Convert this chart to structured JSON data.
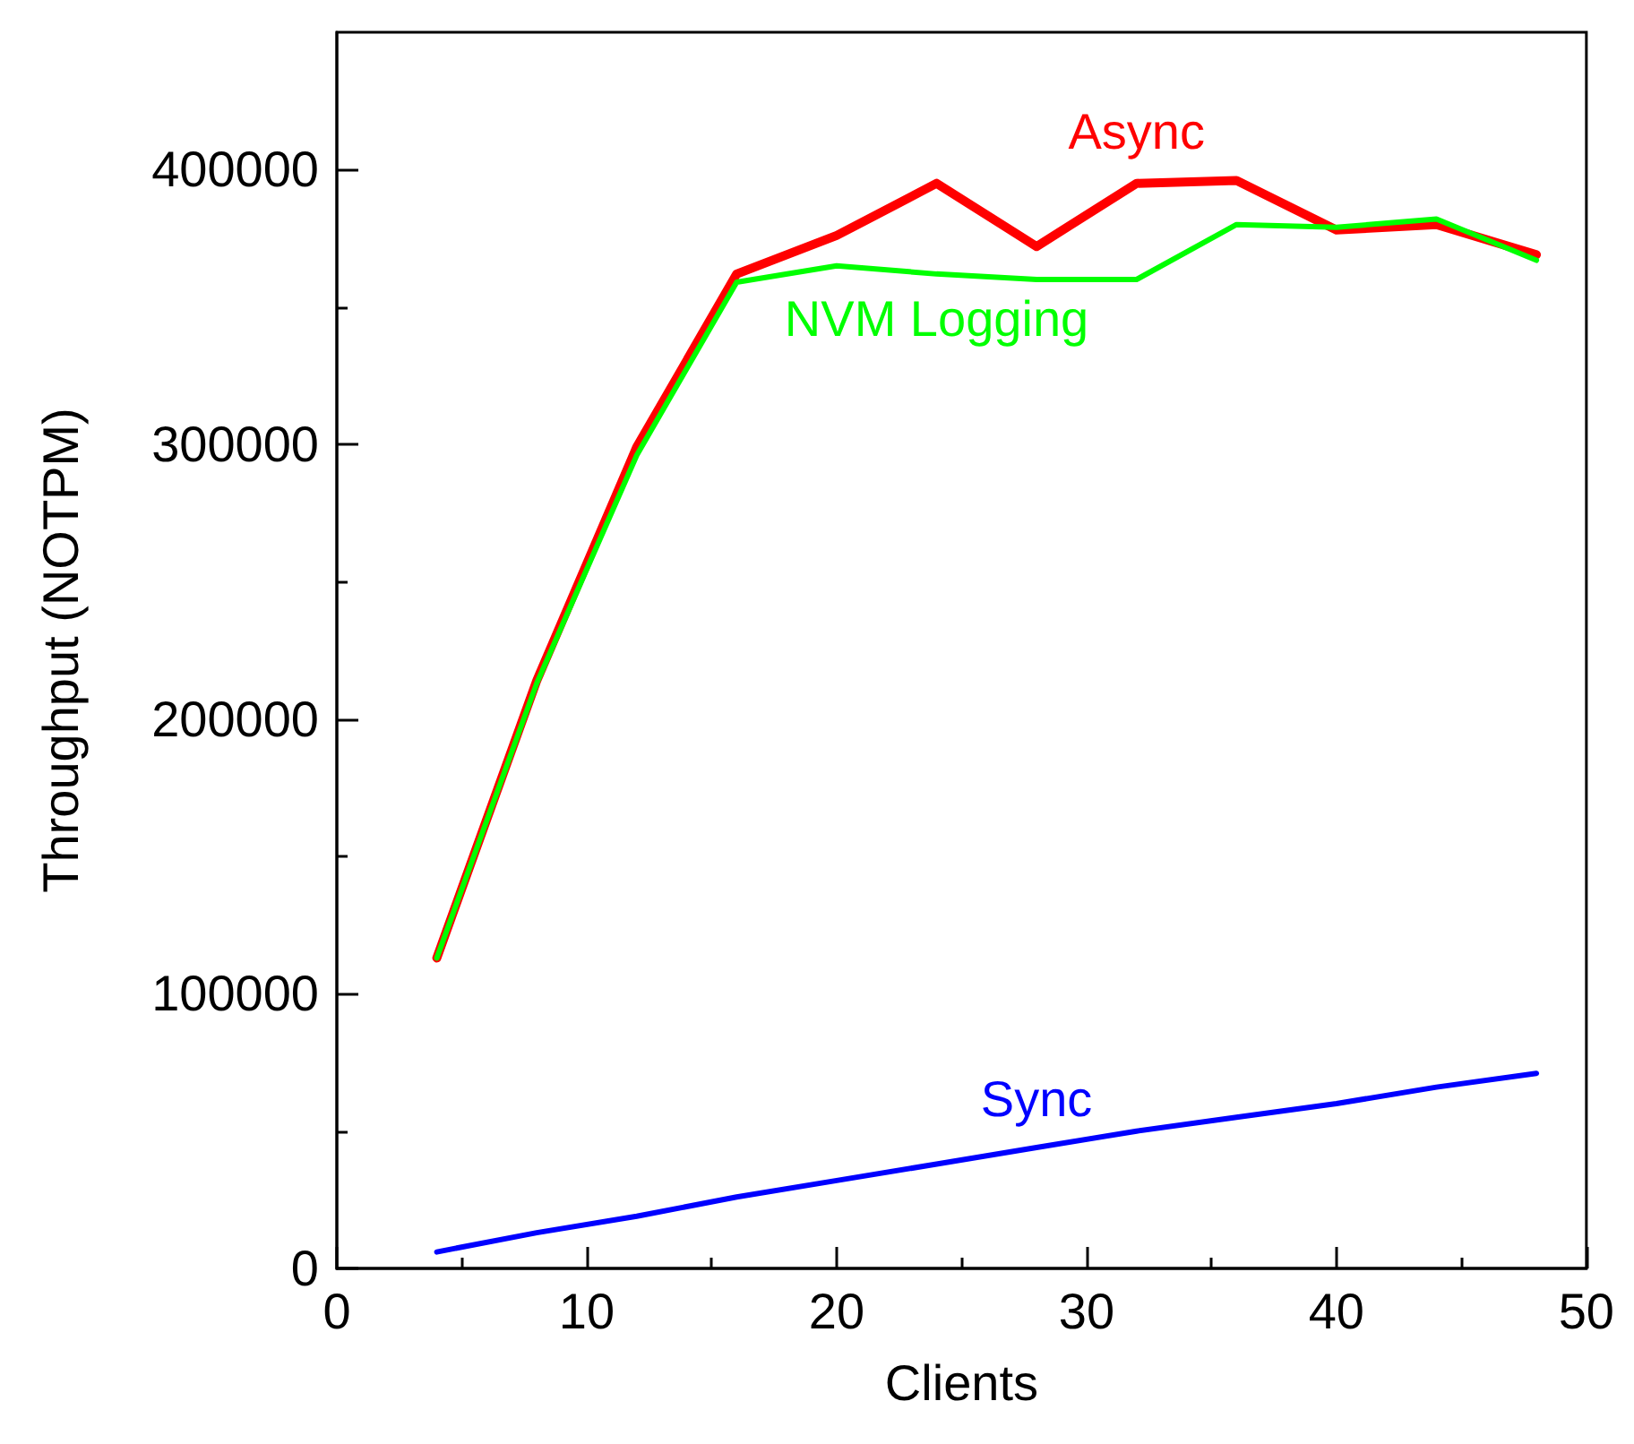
{
  "chart_data": {
    "type": "line",
    "xlabel": "Clients",
    "ylabel": "Throughput (NOTPM)",
    "x": [
      4,
      8,
      12,
      16,
      20,
      24,
      28,
      32,
      36,
      40,
      44,
      48
    ],
    "series": [
      {
        "name": "Async",
        "color": "#ff0000",
        "values": [
          113000,
          214000,
          299000,
          362000,
          376000,
          395000,
          372000,
          395000,
          396000,
          378000,
          380000,
          369000
        ]
      },
      {
        "name": "NVM Logging",
        "color": "#00ff00",
        "values": [
          113000,
          213000,
          296000,
          359000,
          365000,
          362000,
          360000,
          360000,
          380000,
          379000,
          382000,
          367000
        ]
      },
      {
        "name": "Sync",
        "color": "#0000ff",
        "values": [
          6000,
          13000,
          19000,
          26000,
          32000,
          38000,
          44000,
          50000,
          55000,
          60000,
          66000,
          71000
        ]
      }
    ],
    "xlim": [
      0,
      50
    ],
    "xticks": [
      0,
      10,
      20,
      30,
      40,
      50
    ],
    "ylim": [
      0,
      450000
    ],
    "yticks": [
      0,
      100000,
      200000,
      300000,
      400000
    ],
    "grid": false,
    "legend": false,
    "marker": "none",
    "line_style": "solid"
  }
}
